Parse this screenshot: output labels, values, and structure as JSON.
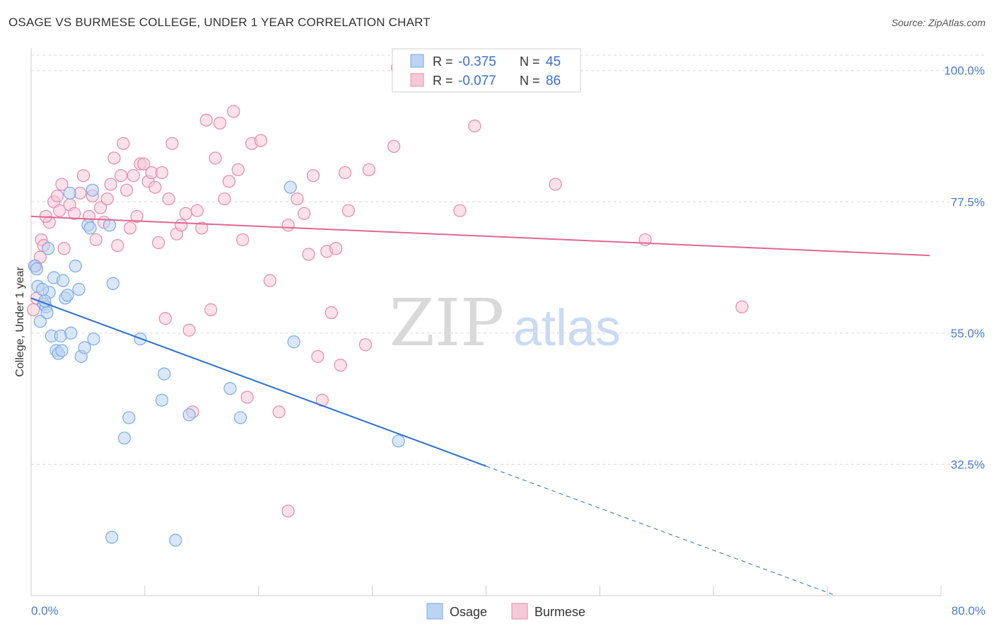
{
  "title": "OSAGE VS BURMESE COLLEGE, UNDER 1 YEAR CORRELATION CHART",
  "source": "Source: ZipAtlas.com",
  "colors": {
    "osage": "#7aaae8",
    "osage_fill": "#bcd3f3",
    "osage_line": "#2a6fd4",
    "burmese": "#e58aab",
    "burmese_fill": "#f6c9d8",
    "burmese_line": "#e06890",
    "grid": "#d8d8d8",
    "tick": "#4a7ccc"
  },
  "legend": {
    "r_label": "R =",
    "n_label": "N =",
    "osage": {
      "r": "-0.375",
      "n": "45"
    },
    "burmese": {
      "r": "-0.077",
      "n": "86"
    }
  },
  "watermark": {
    "zip": "ZIP",
    "atlas": "atlas"
  },
  "chart_data": {
    "type": "scatter",
    "xlabel": "",
    "ylabel": "College, Under 1 year",
    "xlim": [
      0,
      80
    ],
    "ylim": [
      10,
      103
    ],
    "x_tick_labels": [
      "0.0%",
      "80.0%"
    ],
    "y_ticks": [
      32.5,
      55.0,
      77.5,
      100.0
    ],
    "y_tick_labels": [
      "32.5%",
      "55.0%",
      "77.5%",
      "100.0%"
    ],
    "legend_position": "bottom-center",
    "series": [
      {
        "name": "Osage",
        "trend": {
          "x0": 0,
          "y0": 61.0,
          "x1": 40,
          "y1": 32.2,
          "dashed_to_x": 70.5,
          "dashed_to_y": 10.2
        },
        "points": [
          [
            0.3,
            66.5
          ],
          [
            0.6,
            63.0
          ],
          [
            0.8,
            57.0
          ],
          [
            1.1,
            60.0
          ],
          [
            1.3,
            59.5
          ],
          [
            1.5,
            69.5
          ],
          [
            1.6,
            62.0
          ],
          [
            1.8,
            54.5
          ],
          [
            2.0,
            64.5
          ],
          [
            2.2,
            52.0
          ],
          [
            2.4,
            51.5
          ],
          [
            2.6,
            54.5
          ],
          [
            2.8,
            64.0
          ],
          [
            3.0,
            61.0
          ],
          [
            3.2,
            61.5
          ],
          [
            3.5,
            55.0
          ],
          [
            3.4,
            79.0
          ],
          [
            3.9,
            66.5
          ],
          [
            4.2,
            62.5
          ],
          [
            4.4,
            51.0
          ],
          [
            4.7,
            52.5
          ],
          [
            5.0,
            73.5
          ],
          [
            5.2,
            73.0
          ],
          [
            5.5,
            54.0
          ],
          [
            5.4,
            79.5
          ],
          [
            6.9,
            73.5
          ],
          [
            7.2,
            63.5
          ],
          [
            8.2,
            37.0
          ],
          [
            8.6,
            40.5
          ],
          [
            9.6,
            54.0
          ],
          [
            11.5,
            43.5
          ],
          [
            11.7,
            48.0
          ],
          [
            13.9,
            41.0
          ],
          [
            17.5,
            45.5
          ],
          [
            18.4,
            40.5
          ],
          [
            23.1,
            53.5
          ],
          [
            22.8,
            80.0
          ],
          [
            32.3,
            36.5
          ],
          [
            7.1,
            20.0
          ],
          [
            12.7,
            19.5
          ],
          [
            0.5,
            66.0
          ],
          [
            1.0,
            62.5
          ],
          [
            1.4,
            58.5
          ],
          [
            2.7,
            52.0
          ],
          [
            1.2,
            60.5
          ]
        ]
      },
      {
        "name": "Burmese",
        "trend": {
          "x0": 0,
          "y0": 75.0,
          "x1": 79,
          "y1": 68.3
        },
        "points": [
          [
            0.2,
            59.0
          ],
          [
            0.4,
            66.5
          ],
          [
            0.9,
            71.0
          ],
          [
            1.1,
            70.0
          ],
          [
            1.6,
            74.0
          ],
          [
            2.0,
            77.5
          ],
          [
            2.3,
            78.5
          ],
          [
            2.7,
            80.5
          ],
          [
            2.9,
            69.5
          ],
          [
            3.4,
            77.0
          ],
          [
            3.8,
            75.5
          ],
          [
            4.3,
            79.0
          ],
          [
            4.6,
            82.0
          ],
          [
            5.1,
            75.0
          ],
          [
            5.4,
            78.5
          ],
          [
            5.7,
            71.0
          ],
          [
            6.1,
            76.5
          ],
          [
            6.4,
            74.0
          ],
          [
            6.7,
            78.0
          ],
          [
            7.0,
            80.5
          ],
          [
            7.3,
            85.0
          ],
          [
            7.6,
            70.0
          ],
          [
            7.9,
            82.0
          ],
          [
            8.1,
            87.5
          ],
          [
            8.4,
            79.5
          ],
          [
            8.7,
            73.0
          ],
          [
            9.0,
            82.0
          ],
          [
            9.3,
            75.0
          ],
          [
            9.6,
            84.0
          ],
          [
            9.9,
            84.0
          ],
          [
            10.3,
            81.0
          ],
          [
            10.6,
            82.5
          ],
          [
            10.9,
            80.0
          ],
          [
            11.2,
            70.5
          ],
          [
            11.5,
            82.5
          ],
          [
            11.8,
            57.5
          ],
          [
            12.1,
            78.0
          ],
          [
            12.4,
            87.5
          ],
          [
            12.8,
            72.0
          ],
          [
            13.2,
            73.5
          ],
          [
            13.6,
            75.5
          ],
          [
            13.9,
            55.5
          ],
          [
            14.2,
            41.5
          ],
          [
            14.6,
            76.0
          ],
          [
            15.0,
            73.0
          ],
          [
            15.4,
            91.5
          ],
          [
            15.8,
            59.0
          ],
          [
            16.2,
            85.0
          ],
          [
            16.6,
            91.0
          ],
          [
            17.0,
            78.0
          ],
          [
            17.4,
            81.0
          ],
          [
            17.8,
            93.0
          ],
          [
            18.2,
            83.0
          ],
          [
            18.6,
            71.0
          ],
          [
            19.0,
            44.0
          ],
          [
            19.4,
            87.5
          ],
          [
            20.2,
            88.0
          ],
          [
            21.0,
            64.0
          ],
          [
            21.8,
            41.5
          ],
          [
            22.6,
            73.5
          ],
          [
            23.4,
            78.0
          ],
          [
            24.0,
            75.5
          ],
          [
            24.4,
            68.5
          ],
          [
            24.8,
            82.0
          ],
          [
            25.2,
            51.0
          ],
          [
            25.6,
            43.5
          ],
          [
            26.0,
            69.0
          ],
          [
            26.4,
            58.5
          ],
          [
            26.8,
            69.5
          ],
          [
            27.2,
            49.5
          ],
          [
            27.6,
            82.5
          ],
          [
            27.9,
            76.0
          ],
          [
            29.4,
            53.0
          ],
          [
            29.7,
            83.0
          ],
          [
            31.9,
            87.0
          ],
          [
            32.2,
            100.5
          ],
          [
            37.7,
            76.0
          ],
          [
            39.0,
            90.5
          ],
          [
            46.1,
            80.5
          ],
          [
            54.0,
            71.0
          ],
          [
            62.5,
            59.5
          ],
          [
            22.6,
            24.5
          ],
          [
            0.5,
            61.0
          ],
          [
            1.3,
            75.0
          ],
          [
            2.5,
            76.0
          ],
          [
            0.8,
            68.0
          ]
        ]
      }
    ]
  },
  "bottom_legend": [
    {
      "label": "Osage"
    },
    {
      "label": "Burmese"
    }
  ]
}
